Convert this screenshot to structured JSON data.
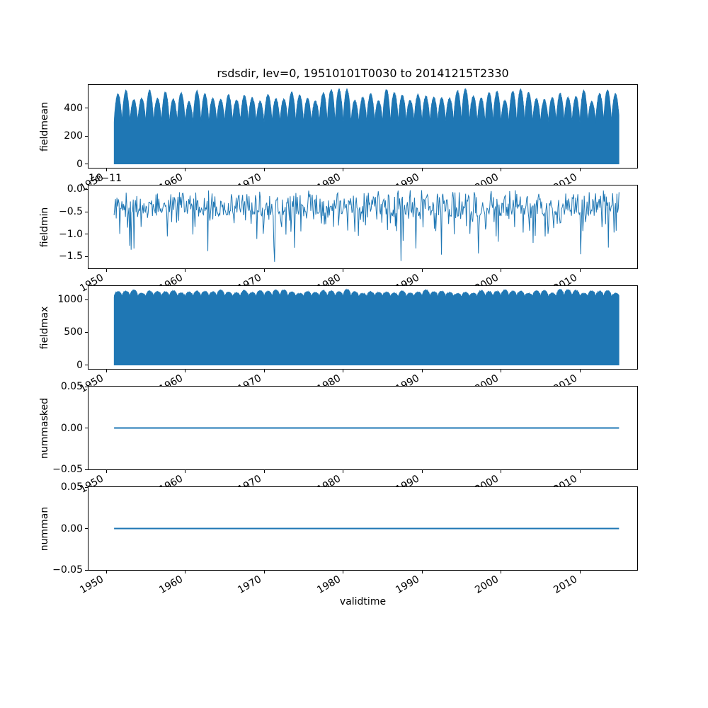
{
  "figure": {
    "title": "rsdsdir, lev=0, 19510101T0030 to 20141215T2330",
    "series_color": "#1f77b4",
    "text_color": "#000000",
    "background_color": "#ffffff"
  },
  "x_axis": {
    "label": "validtime",
    "ticks": [
      1950,
      1960,
      1970,
      1980,
      1990,
      2000,
      2010
    ],
    "tick_labels": [
      "1950",
      "1960",
      "1970",
      "1980",
      "1990",
      "2000",
      "2010"
    ],
    "tick_rotation_deg": 30,
    "limits": [
      1947.76,
      2017.26
    ],
    "data_start": 1951.0,
    "data_end": 2014.958
  },
  "chart_data": [
    {
      "id": "fieldmean",
      "type": "area",
      "ylabel": "fieldmean",
      "ylim": [
        -27.2,
        567.2
      ],
      "yticks": [
        0,
        200,
        400
      ],
      "ytick_labels": [
        "0",
        "200",
        "400"
      ],
      "grid": false,
      "annual_cycle": {
        "period_years": 1,
        "fill_baseline": 0,
        "valley_level": 295,
        "peak_level_min": 445,
        "peak_level_max": 540,
        "envelope_power": 0.7,
        "jitter": 7
      },
      "seed": 42
    },
    {
      "id": "fieldmin",
      "type": "line",
      "ylabel": "fieldmin",
      "offset_text": "1e−11",
      "unit_scale": 1e-11,
      "ylim": [
        -1.764,
        0.084
      ],
      "yticks": [
        0.0,
        -0.5,
        -1.0,
        -1.5
      ],
      "ytick_labels": [
        "0.0",
        "−0.5",
        "−1.0",
        "−1.5"
      ],
      "grid": false,
      "spikes": {
        "samples": 712,
        "band": [
          0.02,
          0.6
        ],
        "band_power": 0.75,
        "mid_probability": 0.28,
        "mid_extra_max": 0.55,
        "deep_probability": 0.02,
        "deep_range": [
          0.95,
          1.55
        ],
        "floor": -1.68
      },
      "major_spikes": [
        {
          "x": 1953.2,
          "value": -1.35
        },
        {
          "x": 1971.3,
          "value": -1.62
        },
        {
          "x": 1987.3,
          "value": -1.6
        },
        {
          "x": 1989.2,
          "value": -1.32
        },
        {
          "x": 2010.1,
          "value": -1.45
        },
        {
          "x": 2013.6,
          "value": -1.3
        }
      ],
      "seed": 7
    },
    {
      "id": "fieldmax",
      "type": "area",
      "ylabel": "fieldmax",
      "ylim": [
        -57.5,
        1207.5
      ],
      "yticks": [
        0,
        500,
        1000
      ],
      "ytick_labels": [
        "0",
        "500",
        "1000"
      ],
      "grid": false,
      "annual_cycle": {
        "period_years": 1,
        "fill_baseline": 0,
        "valley_level": 1035,
        "peak_level_min": 1090,
        "peak_level_max": 1155,
        "envelope_power": 0.45,
        "jitter": 9
      },
      "seed": 11
    },
    {
      "id": "nummasked",
      "type": "line",
      "ylabel": "nummasked",
      "constant_value": 0,
      "ylim": [
        -0.05,
        0.05
      ],
      "yticks": [
        0.05,
        0.0,
        -0.05
      ],
      "ytick_labels": [
        "0.05",
        "0.00",
        "−0.05"
      ],
      "grid": false
    },
    {
      "id": "numman",
      "type": "line",
      "ylabel": "numman",
      "constant_value": 0,
      "ylim": [
        -0.05,
        0.05
      ],
      "yticks": [
        0.05,
        0.0,
        -0.05
      ],
      "ytick_labels": [
        "0.05",
        "0.00",
        "−0.05"
      ],
      "grid": false
    }
  ]
}
